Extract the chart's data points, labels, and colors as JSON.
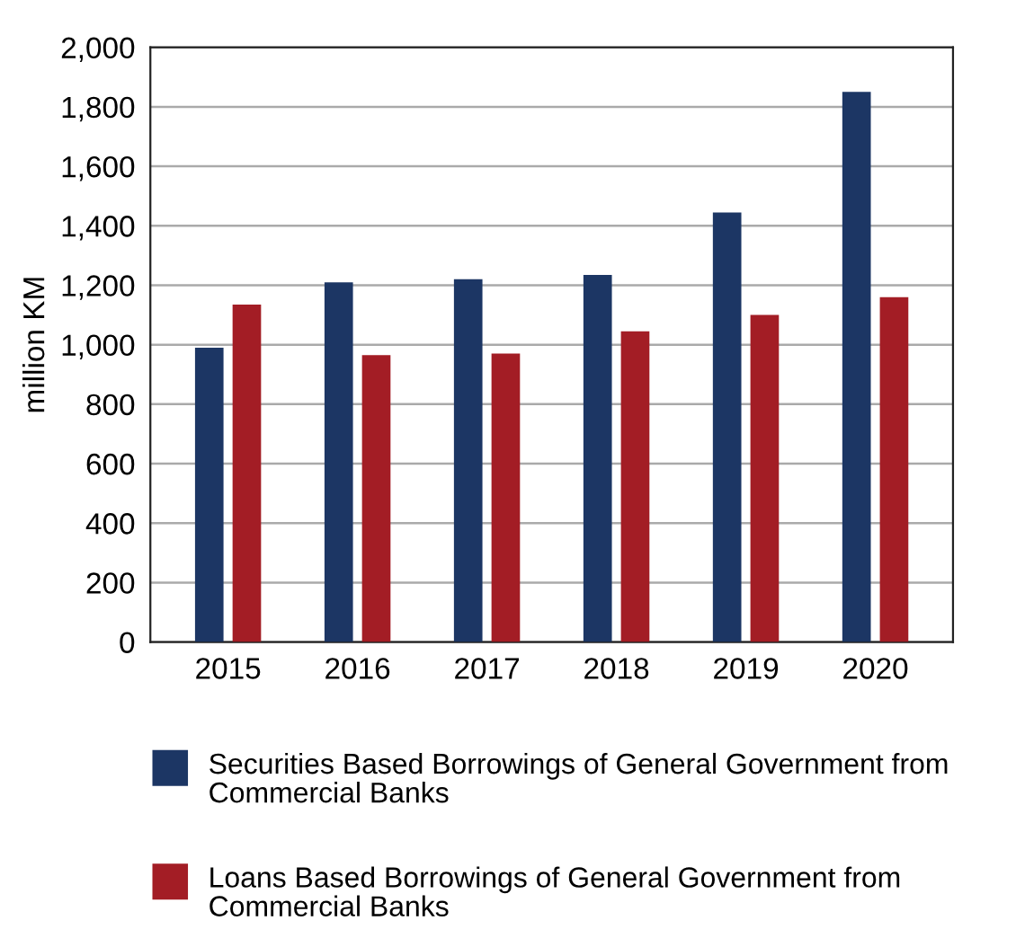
{
  "chart_data": {
    "type": "bar",
    "ylabel": "million KM",
    "categories": [
      "2015",
      "2016",
      "2017",
      "2018",
      "2019",
      "2020"
    ],
    "series": [
      {
        "name": "Securities Based Borrowings of General Government from Commercial Banks",
        "color": "#1c3664",
        "values": [
          990,
          1210,
          1220,
          1235,
          1445,
          1850
        ]
      },
      {
        "name": "Loans Based Borrowings of General Government from Commercial Banks",
        "color": "#a31d25",
        "values": [
          1135,
          965,
          970,
          1045,
          1100,
          1160
        ]
      }
    ],
    "ylim": [
      0,
      2000
    ],
    "yticks": [
      {
        "value": 0,
        "label": "0"
      },
      {
        "value": 200,
        "label": "200"
      },
      {
        "value": 400,
        "label": "400"
      },
      {
        "value": 600,
        "label": "600"
      },
      {
        "value": 800,
        "label": "800"
      },
      {
        "value": 1000,
        "label": "1,000"
      },
      {
        "value": 1200,
        "label": "1,200"
      },
      {
        "value": 1400,
        "label": "1,400"
      },
      {
        "value": 1600,
        "label": "1,600"
      },
      {
        "value": 1800,
        "label": "1,800"
      },
      {
        "value": 2000,
        "label": "2,000"
      }
    ],
    "grid": "y",
    "legend": "bottom"
  }
}
